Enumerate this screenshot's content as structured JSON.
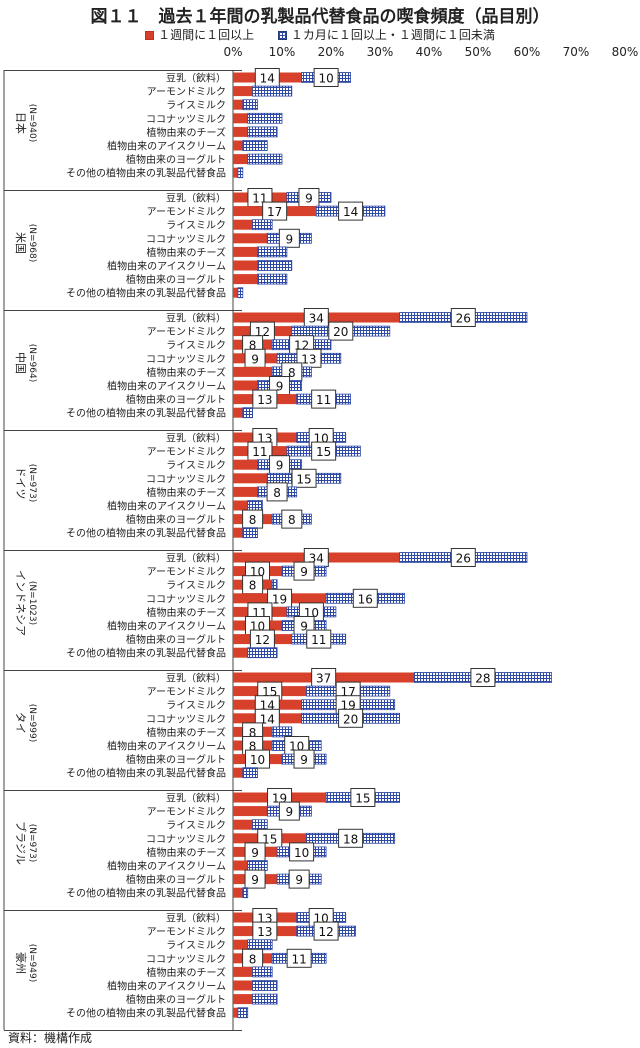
{
  "chart_data": {
    "type": "bar",
    "orientation": "horizontal",
    "stacked": true,
    "title": "図１１　過去１年間の乳製品代替食品の喫食頻度（品目別）",
    "legend": [
      "１週間に１回以上",
      "１カ月に１回以上・１週間に１回未満"
    ],
    "legend_position": "top",
    "xlim": [
      0,
      80
    ],
    "x_ticks": [
      "0%",
      "10%",
      "20%",
      "30%",
      "40%",
      "50%",
      "60%",
      "70%",
      "80%"
    ],
    "categories": [
      "豆乳（飲料）",
      "アーモンドミルク",
      "ライスミルク",
      "ココナッツミルク",
      "植物由来のチーズ",
      "植物由来のアイスクリーム",
      "植物由来のヨーグルト",
      "その他の植物由来の乳製品代替食品"
    ],
    "groups": [
      {
        "country": "日本",
        "n": "(N=940)",
        "weekly": [
          14,
          4,
          2,
          3,
          3,
          2,
          3,
          1
        ],
        "monthly": [
          10,
          8,
          3,
          7,
          6,
          5,
          7,
          1
        ],
        "weekly_labels": [
          "14",
          "",
          "",
          "",
          "",
          "",
          "",
          ""
        ],
        "monthly_labels": [
          "10",
          "",
          "",
          "",
          "",
          "",
          "",
          ""
        ]
      },
      {
        "country": "米国",
        "n": "(N=968)",
        "weekly": [
          11,
          17,
          4,
          7,
          5,
          5,
          5,
          1
        ],
        "monthly": [
          9,
          14,
          4,
          9,
          6,
          7,
          6,
          1
        ],
        "weekly_labels": [
          "11",
          "17",
          "",
          "",
          "",
          "",
          "",
          ""
        ],
        "monthly_labels": [
          "9",
          "14",
          "",
          "9",
          "",
          "",
          "",
          ""
        ]
      },
      {
        "country": "中国",
        "n": "(N=964)",
        "weekly": [
          34,
          12,
          8,
          9,
          8,
          5,
          13,
          2
        ],
        "monthly": [
          26,
          20,
          12,
          13,
          8,
          9,
          11,
          2
        ],
        "weekly_labels": [
          "34",
          "12",
          "8",
          "9",
          "",
          "",
          "13",
          ""
        ],
        "monthly_labels": [
          "26",
          "20",
          "12",
          "13",
          "8",
          "9",
          "11",
          ""
        ]
      },
      {
        "country": "ドイツ",
        "n": "(N=973)",
        "weekly": [
          13,
          11,
          5,
          7,
          5,
          3,
          8,
          2
        ],
        "monthly": [
          10,
          15,
          9,
          15,
          8,
          3,
          8,
          3
        ],
        "weekly_labels": [
          "13",
          "11",
          "",
          "",
          "",
          "",
          "8",
          ""
        ],
        "monthly_labels": [
          "10",
          "15",
          "9",
          "15",
          "8",
          "",
          "8",
          ""
        ]
      },
      {
        "country": "インドネシア",
        "n": "(N=1023)",
        "weekly": [
          34,
          10,
          8,
          19,
          11,
          10,
          12,
          3
        ],
        "monthly": [
          26,
          9,
          1,
          16,
          10,
          9,
          11,
          6
        ],
        "weekly_labels": [
          "34",
          "10",
          "8",
          "19",
          "11",
          "10",
          "12",
          ""
        ],
        "monthly_labels": [
          "26",
          "9",
          "",
          "16",
          "10",
          "9",
          "11",
          ""
        ]
      },
      {
        "country": "タイ",
        "n": "(N=999)",
        "weekly": [
          37,
          15,
          14,
          14,
          8,
          8,
          10,
          2
        ],
        "monthly": [
          28,
          17,
          19,
          20,
          4,
          10,
          9,
          3
        ],
        "weekly_labels": [
          "37",
          "15",
          "14",
          "14",
          "8",
          "8",
          "10",
          ""
        ],
        "monthly_labels": [
          "28",
          "17",
          "19",
          "20",
          "",
          "10",
          "9",
          ""
        ]
      },
      {
        "country": "ブラジル",
        "n": "(N=973)",
        "weekly": [
          19,
          7,
          4,
          15,
          9,
          3,
          9,
          2
        ],
        "monthly": [
          15,
          9,
          3,
          18,
          10,
          4,
          9,
          1
        ],
        "weekly_labels": [
          "19",
          "",
          "",
          "15",
          "9",
          "",
          "9",
          ""
        ],
        "monthly_labels": [
          "15",
          "9",
          "",
          "18",
          "10",
          "",
          "9",
          ""
        ]
      },
      {
        "country": "豪州",
        "n": "(N=949)",
        "weekly": [
          13,
          13,
          3,
          8,
          4,
          4,
          4,
          1
        ],
        "monthly": [
          10,
          12,
          5,
          11,
          4,
          5,
          5,
          2
        ],
        "weekly_labels": [
          "13",
          "13",
          "",
          "8",
          "",
          "",
          "",
          ""
        ],
        "monthly_labels": [
          "10",
          "12",
          "",
          "11",
          "",
          "",
          "",
          ""
        ]
      }
    ],
    "colors": {
      "weekly": "#d7402a",
      "monthly_hatch": "#2f4aa6"
    }
  },
  "source_note": "資料：機構作成"
}
